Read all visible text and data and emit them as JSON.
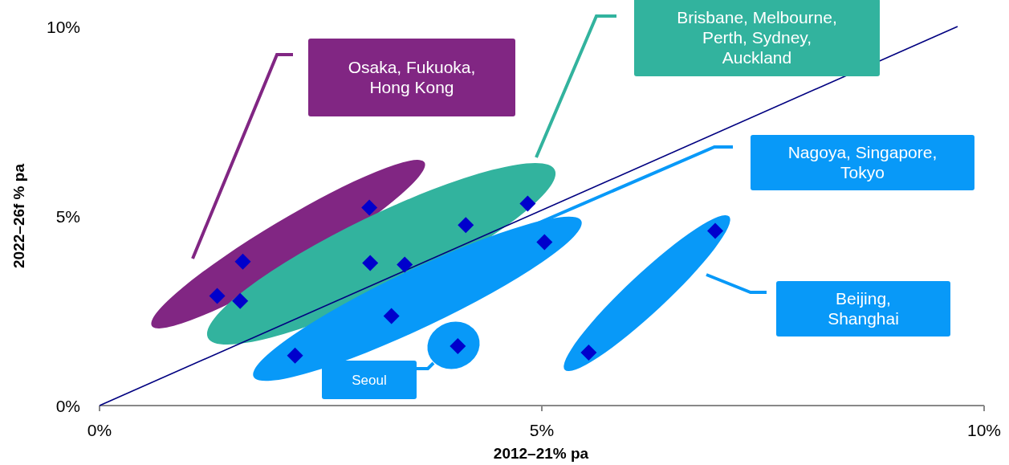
{
  "chart_data": {
    "type": "scatter",
    "xlabel": "2012–21% pa",
    "ylabel": "2022–26f % pa",
    "xlim": [
      0,
      10
    ],
    "ylim": [
      0,
      10
    ],
    "xticks": [
      {
        "value": 0,
        "label": "0%"
      },
      {
        "value": 5,
        "label": "5%"
      },
      {
        "value": 10,
        "label": "10%"
      }
    ],
    "yticks": [
      {
        "value": 0,
        "label": "0%"
      },
      {
        "value": 5,
        "label": "5%"
      },
      {
        "value": 10,
        "label": "10%"
      }
    ],
    "grid": false,
    "marker": "diamond",
    "series": [
      {
        "type": "line",
        "marker": "none",
        "color": "#000080",
        "x": [
          0,
          9.7
        ],
        "values": [
          0,
          10
        ]
      },
      {
        "color": "#0000cc",
        "x": [
          1.33,
          1.62,
          1.59,
          3.05,
          3.06,
          3.45,
          4.14,
          4.84,
          5.03,
          3.3,
          2.21,
          4.05,
          5.53,
          6.96
        ],
        "values": [
          2.89,
          3.8,
          2.76,
          5.22,
          3.76,
          3.72,
          4.76,
          5.33,
          4.31,
          2.36,
          1.32,
          1.57,
          1.4,
          4.61
        ]
      }
    ],
    "annotations": [
      "Osaka, Fukuoka, Hong Kong",
      "Brisbane, Melbourne, Perth, Sydney, Auckland",
      "Nagoya, Singapore, Tokyo",
      "Beijing, Shanghai",
      "Seoul"
    ]
  }
}
